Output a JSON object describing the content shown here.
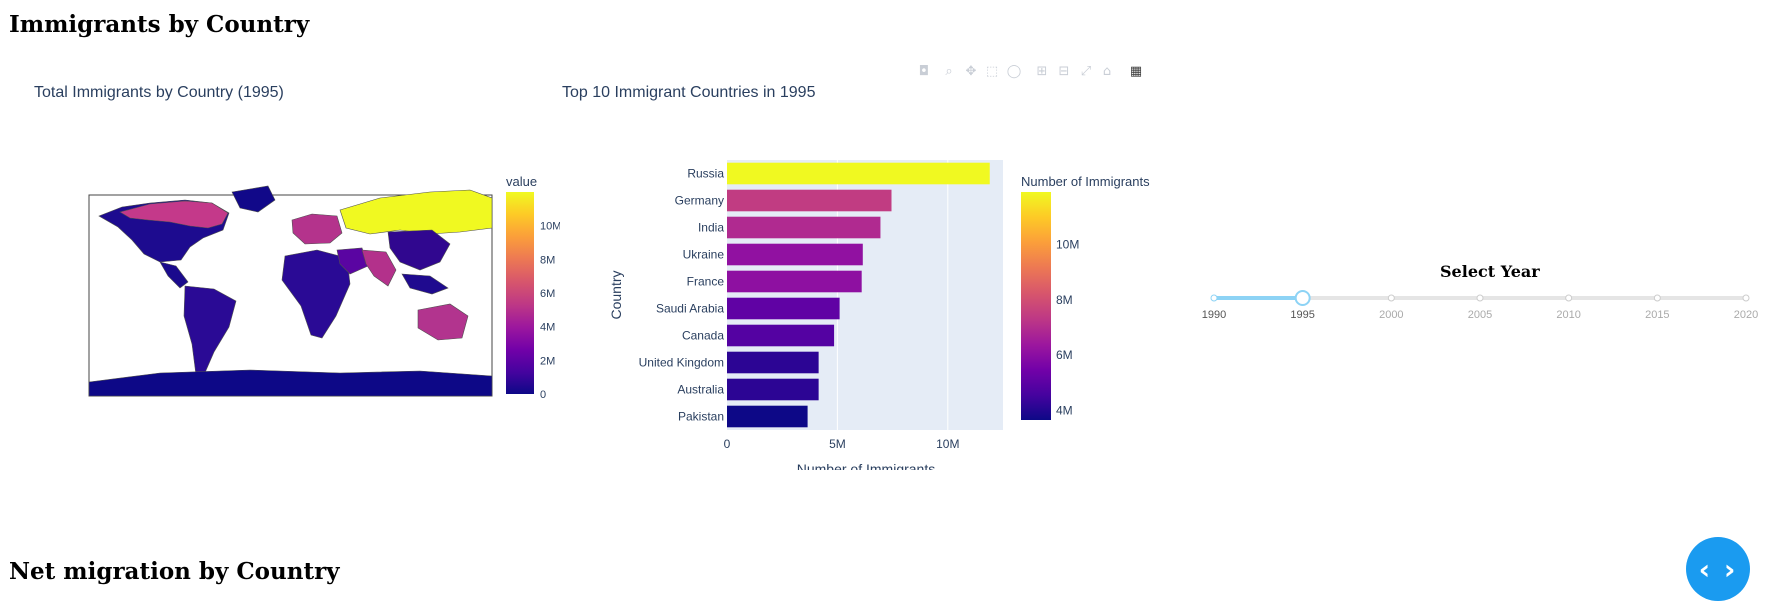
{
  "page": {
    "title1": "Immigrants by Country",
    "title2": "Net migration by Country"
  },
  "map": {
    "title": "Total Immigrants by Country (1995)",
    "colorbar_title": "value",
    "colorbar_ticks": [
      "0",
      "2M",
      "4M",
      "6M",
      "8M",
      "10M"
    ],
    "colorbar_range": [
      0,
      12000000
    ]
  },
  "chart_data": {
    "type": "bar",
    "orientation": "horizontal",
    "title": "Top 10 Immigrant Countries in 1995",
    "xlabel": "Number of Immigrants",
    "ylabel": "Country",
    "categories": [
      "Russia",
      "Germany",
      "India",
      "Ukraine",
      "France",
      "Saudi Arabia",
      "Canada",
      "United Kingdom",
      "Australia",
      "Pakistan"
    ],
    "values": [
      11900000,
      7450000,
      6950000,
      6150000,
      6100000,
      5100000,
      4850000,
      4150000,
      4150000,
      3650000
    ],
    "xlim": [
      0,
      12500000
    ],
    "xticks": [
      0,
      5000000,
      10000000
    ],
    "xtick_labels": [
      "0",
      "5M",
      "10M"
    ],
    "colorbar_title": "Number of Immigrants",
    "colorbar_range": [
      3650000,
      11900000
    ],
    "colorbar_ticks": [
      {
        "value": 4000000,
        "label": "4M"
      },
      {
        "value": 6000000,
        "label": "6M"
      },
      {
        "value": 8000000,
        "label": "8M"
      },
      {
        "value": 10000000,
        "label": "10M"
      }
    ],
    "grid": true,
    "colorscale": [
      "#0d0887",
      "#46039f",
      "#7201a8",
      "#9c179e",
      "#bd3786",
      "#d8576b",
      "#ed7953",
      "#fb9f3a",
      "#fdca26",
      "#f0f921"
    ]
  },
  "slider": {
    "title": "Select Year",
    "years": [
      "1990",
      "1995",
      "2000",
      "2005",
      "2010",
      "2015",
      "2020"
    ],
    "selected": "1995",
    "active_color": "#8dd3f5",
    "track_color": "#e5e5e5"
  },
  "modebar": {
    "icons": [
      "camera-icon",
      "zoom-icon",
      "pan-icon",
      "box-select-icon",
      "lasso-icon",
      "zoom-in-icon",
      "zoom-out-icon",
      "autoscale-icon",
      "reset-icon",
      "plotly-logo-icon"
    ]
  },
  "code_button": {
    "label": "‹ ›"
  }
}
